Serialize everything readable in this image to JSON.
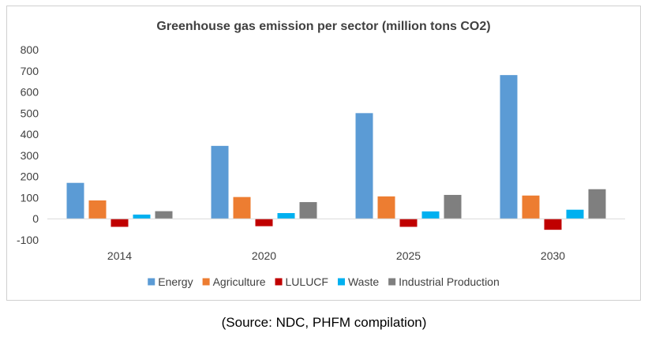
{
  "chart_data": {
    "type": "bar",
    "title": "Greenhouse gas emission per sector (million tons CO2)",
    "categories": [
      "2014",
      "2020",
      "2025",
      "2030"
    ],
    "series": [
      {
        "name": "Energy",
        "color": "#5b9bd5",
        "values": [
          170,
          345,
          500,
          680
        ]
      },
      {
        "name": "Agriculture",
        "color": "#ed7d31",
        "values": [
          87,
          103,
          106,
          110
        ]
      },
      {
        "name": "LULUCF",
        "color": "#c00000",
        "values": [
          -38,
          -35,
          -38,
          -52
        ]
      },
      {
        "name": "Waste",
        "color": "#00b0f0",
        "values": [
          20,
          27,
          35,
          43
        ]
      },
      {
        "name": "Industrial Production",
        "color": "#7f7f7f",
        "values": [
          36,
          79,
          113,
          140
        ]
      }
    ],
    "ylim": [
      -100,
      800
    ],
    "yticks": [
      800,
      700,
      600,
      500,
      400,
      300,
      200,
      100,
      0,
      -100
    ],
    "grid": false,
    "legend": "bottom"
  },
  "caption": "(Source: NDC, PHFM compilation)"
}
